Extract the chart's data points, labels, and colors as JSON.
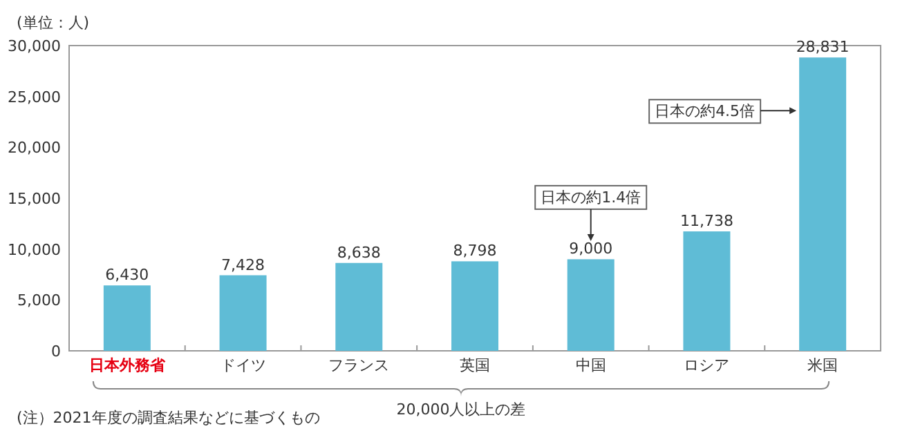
{
  "chart_data": {
    "type": "bar",
    "ylabel": "(単位：人)",
    "categories": [
      "日本外務省",
      "ドイツ",
      "フランス",
      "英国",
      "中国",
      "ロシア",
      "米国"
    ],
    "values": [
      6430,
      7428,
      8638,
      8798,
      9000,
      11738,
      28831
    ],
    "color": "#5fbcd6",
    "ylim": [
      0,
      30000
    ],
    "yticks": [
      {
        "value": 0,
        "label": "0"
      },
      {
        "value": 5000,
        "label": "5,000"
      },
      {
        "value": 10000,
        "label": "10,000"
      },
      {
        "value": 15000,
        "label": "15,000"
      },
      {
        "value": 20000,
        "label": "20,000"
      },
      {
        "value": 25000,
        "label": "25,000"
      },
      {
        "value": 30000,
        "label": "30,000"
      }
    ],
    "value_labels": [
      "6,430",
      "7,428",
      "8,638",
      "8,798",
      "9,000",
      "11,738",
      "28,831"
    ],
    "grid": false,
    "annotations": [
      "日本の約1.4倍",
      "日本の約4.5倍",
      "20,000人以上の差",
      "(注）2021年度の調査結果などに基づくもの"
    ]
  }
}
